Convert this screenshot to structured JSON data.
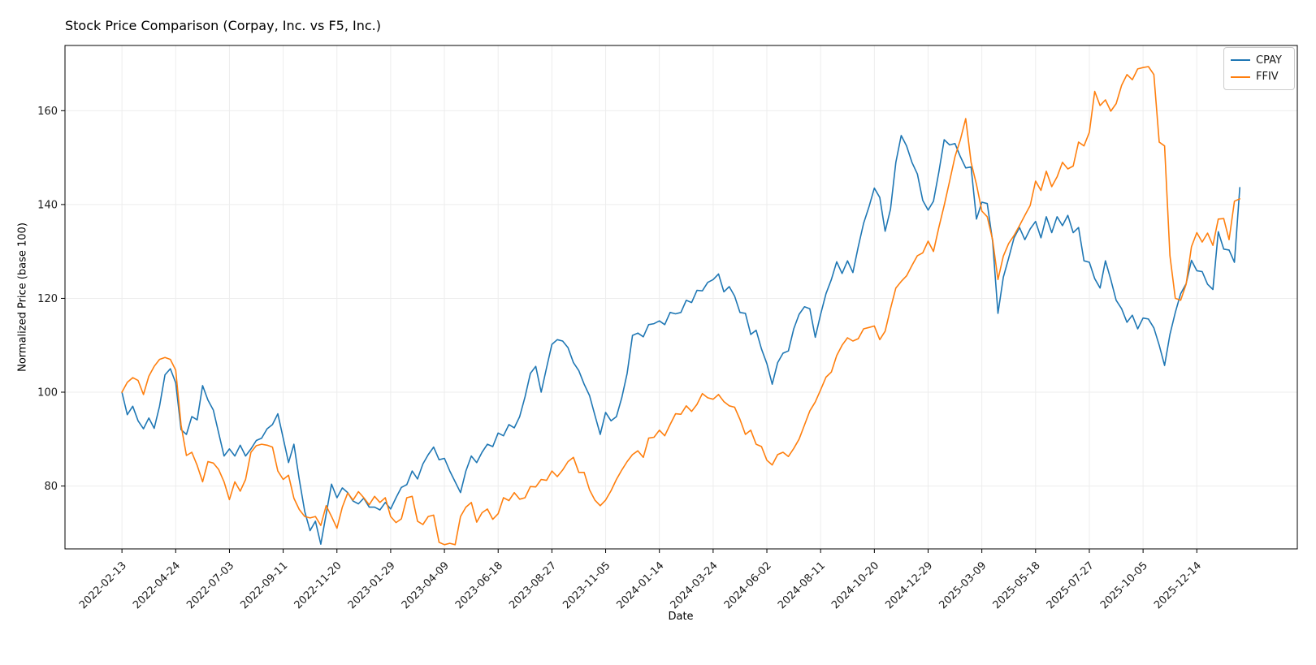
{
  "title": "Stock Price Comparison (Corpay, Inc. vs F5, Inc.)",
  "chart_data": {
    "type": "line",
    "title": "Stock Price Comparison (Corpay, Inc. vs F5, Inc.)",
    "xlabel": "Date",
    "ylabel": "Normalized Price (base 100)",
    "x_start_date": "2022-02-13",
    "x_interval": "weekly",
    "x_tick_labels": [
      "2022-02-13",
      "2022-04-24",
      "2022-07-03",
      "2022-09-11",
      "2022-11-20",
      "2023-01-29",
      "2023-04-09",
      "2023-06-18",
      "2023-08-27",
      "2023-11-05",
      "2024-01-14",
      "2024-03-24",
      "2024-06-02",
      "2024-08-11",
      "2024-10-20",
      "2024-12-29",
      "2025-03-09",
      "2025-05-18",
      "2025-07-27",
      "2025-10-05",
      "2025-12-14"
    ],
    "x_tick_weeks": [
      0,
      10,
      20,
      30,
      40,
      50,
      60,
      70,
      80,
      90,
      100,
      110,
      120,
      130,
      140,
      150,
      160,
      170,
      180,
      190,
      200
    ],
    "y_ticks": [
      80,
      100,
      120,
      140,
      160
    ],
    "xlim_weeks": [
      -10.6,
      218.7
    ],
    "ylim": [
      66.6,
      173.9
    ],
    "grid": true,
    "grid_color": "#ededed",
    "legend_position": "upper right",
    "series": [
      {
        "name": "CPAY",
        "color": "#1f77b4",
        "values": [
          100.0,
          95.2,
          97.0,
          93.9,
          92.2,
          94.5,
          92.3,
          97.0,
          103.7,
          105.0,
          102.0,
          92.0,
          91.0,
          94.8,
          94.1,
          101.4,
          98.3,
          96.2,
          91.3,
          86.4,
          87.9,
          86.4,
          88.7,
          86.4,
          87.9,
          89.7,
          90.2,
          92.2,
          93.1,
          95.4,
          90.2,
          85.0,
          88.9,
          81.4,
          74.6,
          70.5,
          72.5,
          67.6,
          74.0,
          80.4,
          77.5,
          79.6,
          78.6,
          76.8,
          76.2,
          77.4,
          75.5,
          75.5,
          74.9,
          76.5,
          75.1,
          77.5,
          79.7,
          80.3,
          83.2,
          81.5,
          84.7,
          86.7,
          88.3,
          85.6,
          85.9,
          83.2,
          80.9,
          78.6,
          83.2,
          86.4,
          85.0,
          87.2,
          88.9,
          88.4,
          91.3,
          90.7,
          93.1,
          92.4,
          94.8,
          99.0,
          104.0,
          105.5,
          100.0,
          105.2,
          110.2,
          111.2,
          110.9,
          109.5,
          106.3,
          104.6,
          101.7,
          99.3,
          95.1,
          91.0,
          95.7,
          93.9,
          94.8,
          98.8,
          104.0,
          112.1,
          112.6,
          111.8,
          114.4,
          114.6,
          115.2,
          114.4,
          117.0,
          116.7,
          117.0,
          119.6,
          119.1,
          121.7,
          121.6,
          123.4,
          124.0,
          125.2,
          121.4,
          122.5,
          120.5,
          117.0,
          116.8,
          112.3,
          113.2,
          109.2,
          106.1,
          101.7,
          106.3,
          108.3,
          108.8,
          113.5,
          116.6,
          118.2,
          117.8,
          111.7,
          116.6,
          121.0,
          124.0,
          127.8,
          125.3,
          128.0,
          125.5,
          131.0,
          136.0,
          139.5,
          143.5,
          141.5,
          134.3,
          139.0,
          149.0,
          154.7,
          152.5,
          149.0,
          146.5,
          140.9,
          138.8,
          140.7,
          146.9,
          153.8,
          152.7,
          153.0,
          150.2,
          147.8,
          148.0,
          136.9,
          140.5,
          140.2,
          132.2,
          116.8,
          124.5,
          128.6,
          132.9,
          135.1,
          132.5,
          134.8,
          136.4,
          132.9,
          137.4,
          134.0,
          137.4,
          135.5,
          137.7,
          134.0,
          135.1,
          128.0,
          127.7,
          124.2,
          122.2,
          128.0,
          124.0,
          119.6,
          117.8,
          114.9,
          116.4,
          113.5,
          115.8,
          115.6,
          113.7,
          110.0,
          105.7,
          112.3,
          117.0,
          121.0,
          123.1,
          128.1,
          125.9,
          125.7,
          123.0,
          121.9,
          134.2,
          130.5,
          130.3,
          127.7,
          143.6
        ]
      },
      {
        "name": "FFIV",
        "color": "#ff7f0e",
        "values": [
          100.0,
          102.1,
          103.1,
          102.5,
          99.5,
          103.4,
          105.5,
          107.0,
          107.4,
          107.0,
          104.7,
          93.0,
          86.5,
          87.2,
          84.4,
          80.9,
          85.2,
          84.9,
          83.5,
          80.9,
          77.1,
          80.9,
          78.9,
          81.4,
          87.2,
          88.6,
          88.9,
          88.7,
          88.3,
          83.2,
          81.4,
          82.3,
          77.4,
          75.0,
          73.5,
          73.2,
          73.5,
          71.6,
          75.8,
          73.5,
          71.0,
          75.5,
          78.5,
          77.0,
          78.8,
          77.5,
          76.0,
          77.8,
          76.5,
          77.5,
          73.5,
          72.2,
          73.0,
          77.5,
          77.8,
          72.5,
          71.8,
          73.5,
          73.8,
          68.0,
          67.5,
          67.8,
          67.5,
          73.5,
          75.5,
          76.5,
          72.3,
          74.3,
          75.1,
          72.9,
          74.1,
          77.5,
          76.9,
          78.6,
          77.2,
          77.5,
          79.9,
          79.8,
          81.4,
          81.2,
          83.2,
          82.0,
          83.4,
          85.2,
          86.1,
          82.9,
          82.9,
          79.2,
          77.0,
          75.8,
          77.0,
          79.0,
          81.4,
          83.4,
          85.2,
          86.7,
          87.5,
          86.1,
          90.2,
          90.4,
          91.9,
          90.7,
          93.1,
          95.4,
          95.3,
          97.1,
          95.9,
          97.4,
          99.7,
          98.8,
          98.5,
          99.5,
          98.0,
          97.1,
          96.8,
          94.2,
          91.0,
          91.9,
          88.9,
          88.4,
          85.5,
          84.5,
          86.7,
          87.2,
          86.3,
          88.0,
          90.0,
          93.0,
          96.0,
          97.9,
          100.5,
          103.2,
          104.3,
          107.8,
          110.0,
          111.6,
          110.9,
          111.4,
          113.5,
          113.8,
          114.1,
          111.2,
          113.0,
          117.8,
          122.2,
          123.6,
          124.8,
          127.0,
          129.1,
          129.7,
          132.2,
          130.0,
          135.1,
          139.8,
          145.0,
          150.2,
          153.8,
          158.3,
          149.0,
          144.3,
          138.6,
          137.4,
          132.5,
          124.0,
          129.0,
          131.7,
          133.4,
          135.5,
          137.7,
          139.8,
          145.0,
          143.0,
          147.1,
          143.8,
          145.9,
          149.0,
          147.6,
          148.2,
          153.3,
          152.5,
          155.4,
          164.1,
          161.1,
          162.3,
          159.9,
          161.5,
          165.4,
          167.7,
          166.6,
          168.9,
          169.2,
          169.4,
          167.7,
          153.3,
          152.5,
          129.1,
          120.0,
          119.6,
          123.0,
          131.0,
          134.0,
          132.0,
          133.9,
          131.3,
          136.9,
          137.0,
          132.5,
          140.7,
          141.2
        ]
      }
    ]
  }
}
